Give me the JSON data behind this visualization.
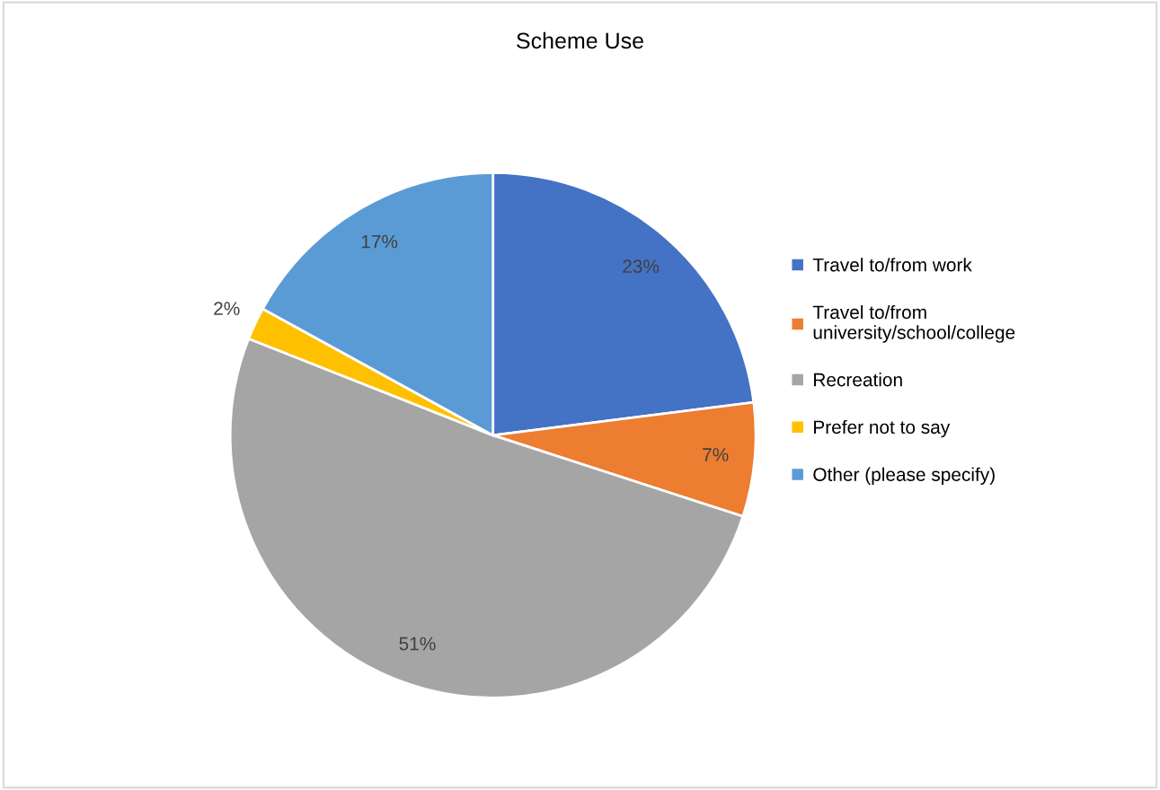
{
  "chart_data": {
    "type": "pie",
    "title": "Scheme Use",
    "categories": [
      "Travel to/from work",
      "Travel to/from\nuniversity/school/college",
      "Recreation",
      "Prefer not to say",
      "Other (please specify)"
    ],
    "values": [
      23,
      7,
      51,
      2,
      17
    ],
    "colors": [
      "#4472c4",
      "#ed7d31",
      "#a5a5a5",
      "#ffc000",
      "#5b9bd5"
    ],
    "value_labels": [
      "23%",
      "7%",
      "51%",
      "2%",
      "17%"
    ],
    "legend": "right"
  }
}
